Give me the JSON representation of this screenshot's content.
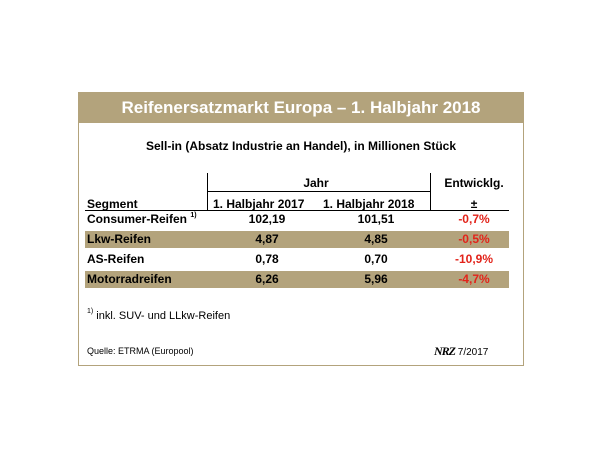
{
  "title": "Reifenersatzmarkt Europa – 1. Halbjahr 2018",
  "subtitle": "Sell-in (Absatz Industrie an Handel), in Millionen Stück",
  "table": {
    "group_header": "Jahr",
    "change_header": "Entwicklg.",
    "change_subheader": "±",
    "segment_header": "Segment",
    "col1_header": "1. Halbjahr 2017",
    "col2_header": "1. Halbjahr 2018",
    "rows": [
      {
        "segment": "Consumer-Reifen",
        "note": "1)",
        "v2017": "102,19",
        "v2018": "101,51",
        "change": "-0,7%"
      },
      {
        "segment": "Lkw-Reifen",
        "note": "",
        "v2017": "4,87",
        "v2018": "4,85",
        "change": "-0,5%"
      },
      {
        "segment": "AS-Reifen",
        "note": "",
        "v2017": "0,78",
        "v2018": "0,70",
        "change": "-10,9%"
      },
      {
        "segment": "Motorradreifen",
        "note": "",
        "v2017": "6,26",
        "v2018": "5,96",
        "change": "-4,7%"
      }
    ]
  },
  "footnote": {
    "marker": "1)",
    "text": " inkl. SUV- und LLkw-Reifen"
  },
  "source": "Quelle: ETRMA (Europool)",
  "brand": {
    "logo": "NRZ",
    "issue": "7/2017"
  },
  "colors": {
    "accent": "#b3a37c",
    "negative": "#e2231a"
  }
}
